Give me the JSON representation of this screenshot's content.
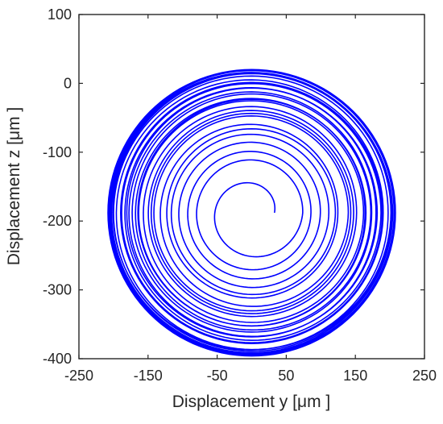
{
  "chart_data": {
    "type": "line",
    "title": "",
    "xlabel": "Displacement y   [μm ]",
    "ylabel": "Displacement z   [μm ]",
    "xlim": [
      -250,
      250
    ],
    "ylim": [
      -400,
      100
    ],
    "xticks": [
      -250,
      -150,
      -50,
      50,
      150,
      250
    ],
    "yticks": [
      100,
      0,
      -100,
      -200,
      -300,
      -400
    ],
    "grid": false,
    "legend": "none",
    "series": [
      {
        "color": "#0000ff",
        "center": [
          0,
          -188
        ],
        "radius_min": 33,
        "radius_max": 208,
        "loops": 30
      }
    ]
  }
}
